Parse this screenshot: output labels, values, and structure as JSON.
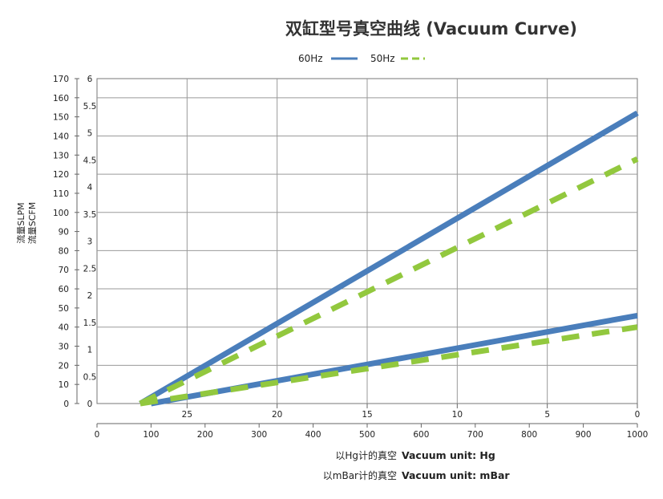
{
  "chart_data": {
    "type": "line",
    "title": "双缸型号真空曲线 (Vacuum Curve)",
    "legend": [
      {
        "label": "60Hz",
        "color": "#4a7ebb",
        "style": "solid"
      },
      {
        "label": "50Hz",
        "color": "#92c83e",
        "style": "dashed"
      }
    ],
    "y_left": {
      "label": "流量SLPM",
      "range": [
        0,
        170
      ],
      "ticks": [
        0,
        10,
        20,
        30,
        40,
        50,
        60,
        70,
        80,
        90,
        100,
        110,
        120,
        130,
        140,
        150,
        160,
        170
      ]
    },
    "y_right": {
      "label": "流量SCFM",
      "range": [
        0,
        6
      ],
      "ticks": [
        "0",
        "0.5",
        "1",
        "1.5",
        "2",
        "2.5",
        "3",
        "3.5",
        "4",
        "4.5",
        "5",
        "5.5",
        "6"
      ]
    },
    "x_hg": {
      "label_cn": "以Hg计的真空",
      "label_en": "Vacuum unit: Hg",
      "ticks": [
        "25",
        "20",
        "15",
        "10",
        "5",
        "0"
      ],
      "tick_mbar_pos": [
        166.67,
        333.33,
        500,
        666.67,
        833.33,
        1000
      ]
    },
    "x_mbar": {
      "label_cn": "以mBar计的真空",
      "label_en": "Vacuum unit: mBar",
      "range": [
        0,
        1000
      ],
      "ticks": [
        0,
        100,
        200,
        300,
        400,
        500,
        600,
        700,
        800,
        900,
        1000
      ]
    },
    "series": [
      {
        "name": "60Hz",
        "x": [
          80,
          1000
        ],
        "y": [
          0,
          152
        ],
        "color": "#4a7ebb",
        "dashed": false
      },
      {
        "name": "50Hz",
        "x": [
          80,
          1000
        ],
        "y": [
          0,
          128
        ],
        "color": "#92c83e",
        "dashed": true
      },
      {
        "name": "60Hz",
        "x": [
          100,
          1000
        ],
        "y": [
          0,
          46
        ],
        "color": "#4a7ebb",
        "dashed": false
      },
      {
        "name": "50Hz",
        "x": [
          80,
          1000
        ],
        "y": [
          0,
          40
        ],
        "color": "#92c83e",
        "dashed": true
      }
    ],
    "grid": true
  }
}
